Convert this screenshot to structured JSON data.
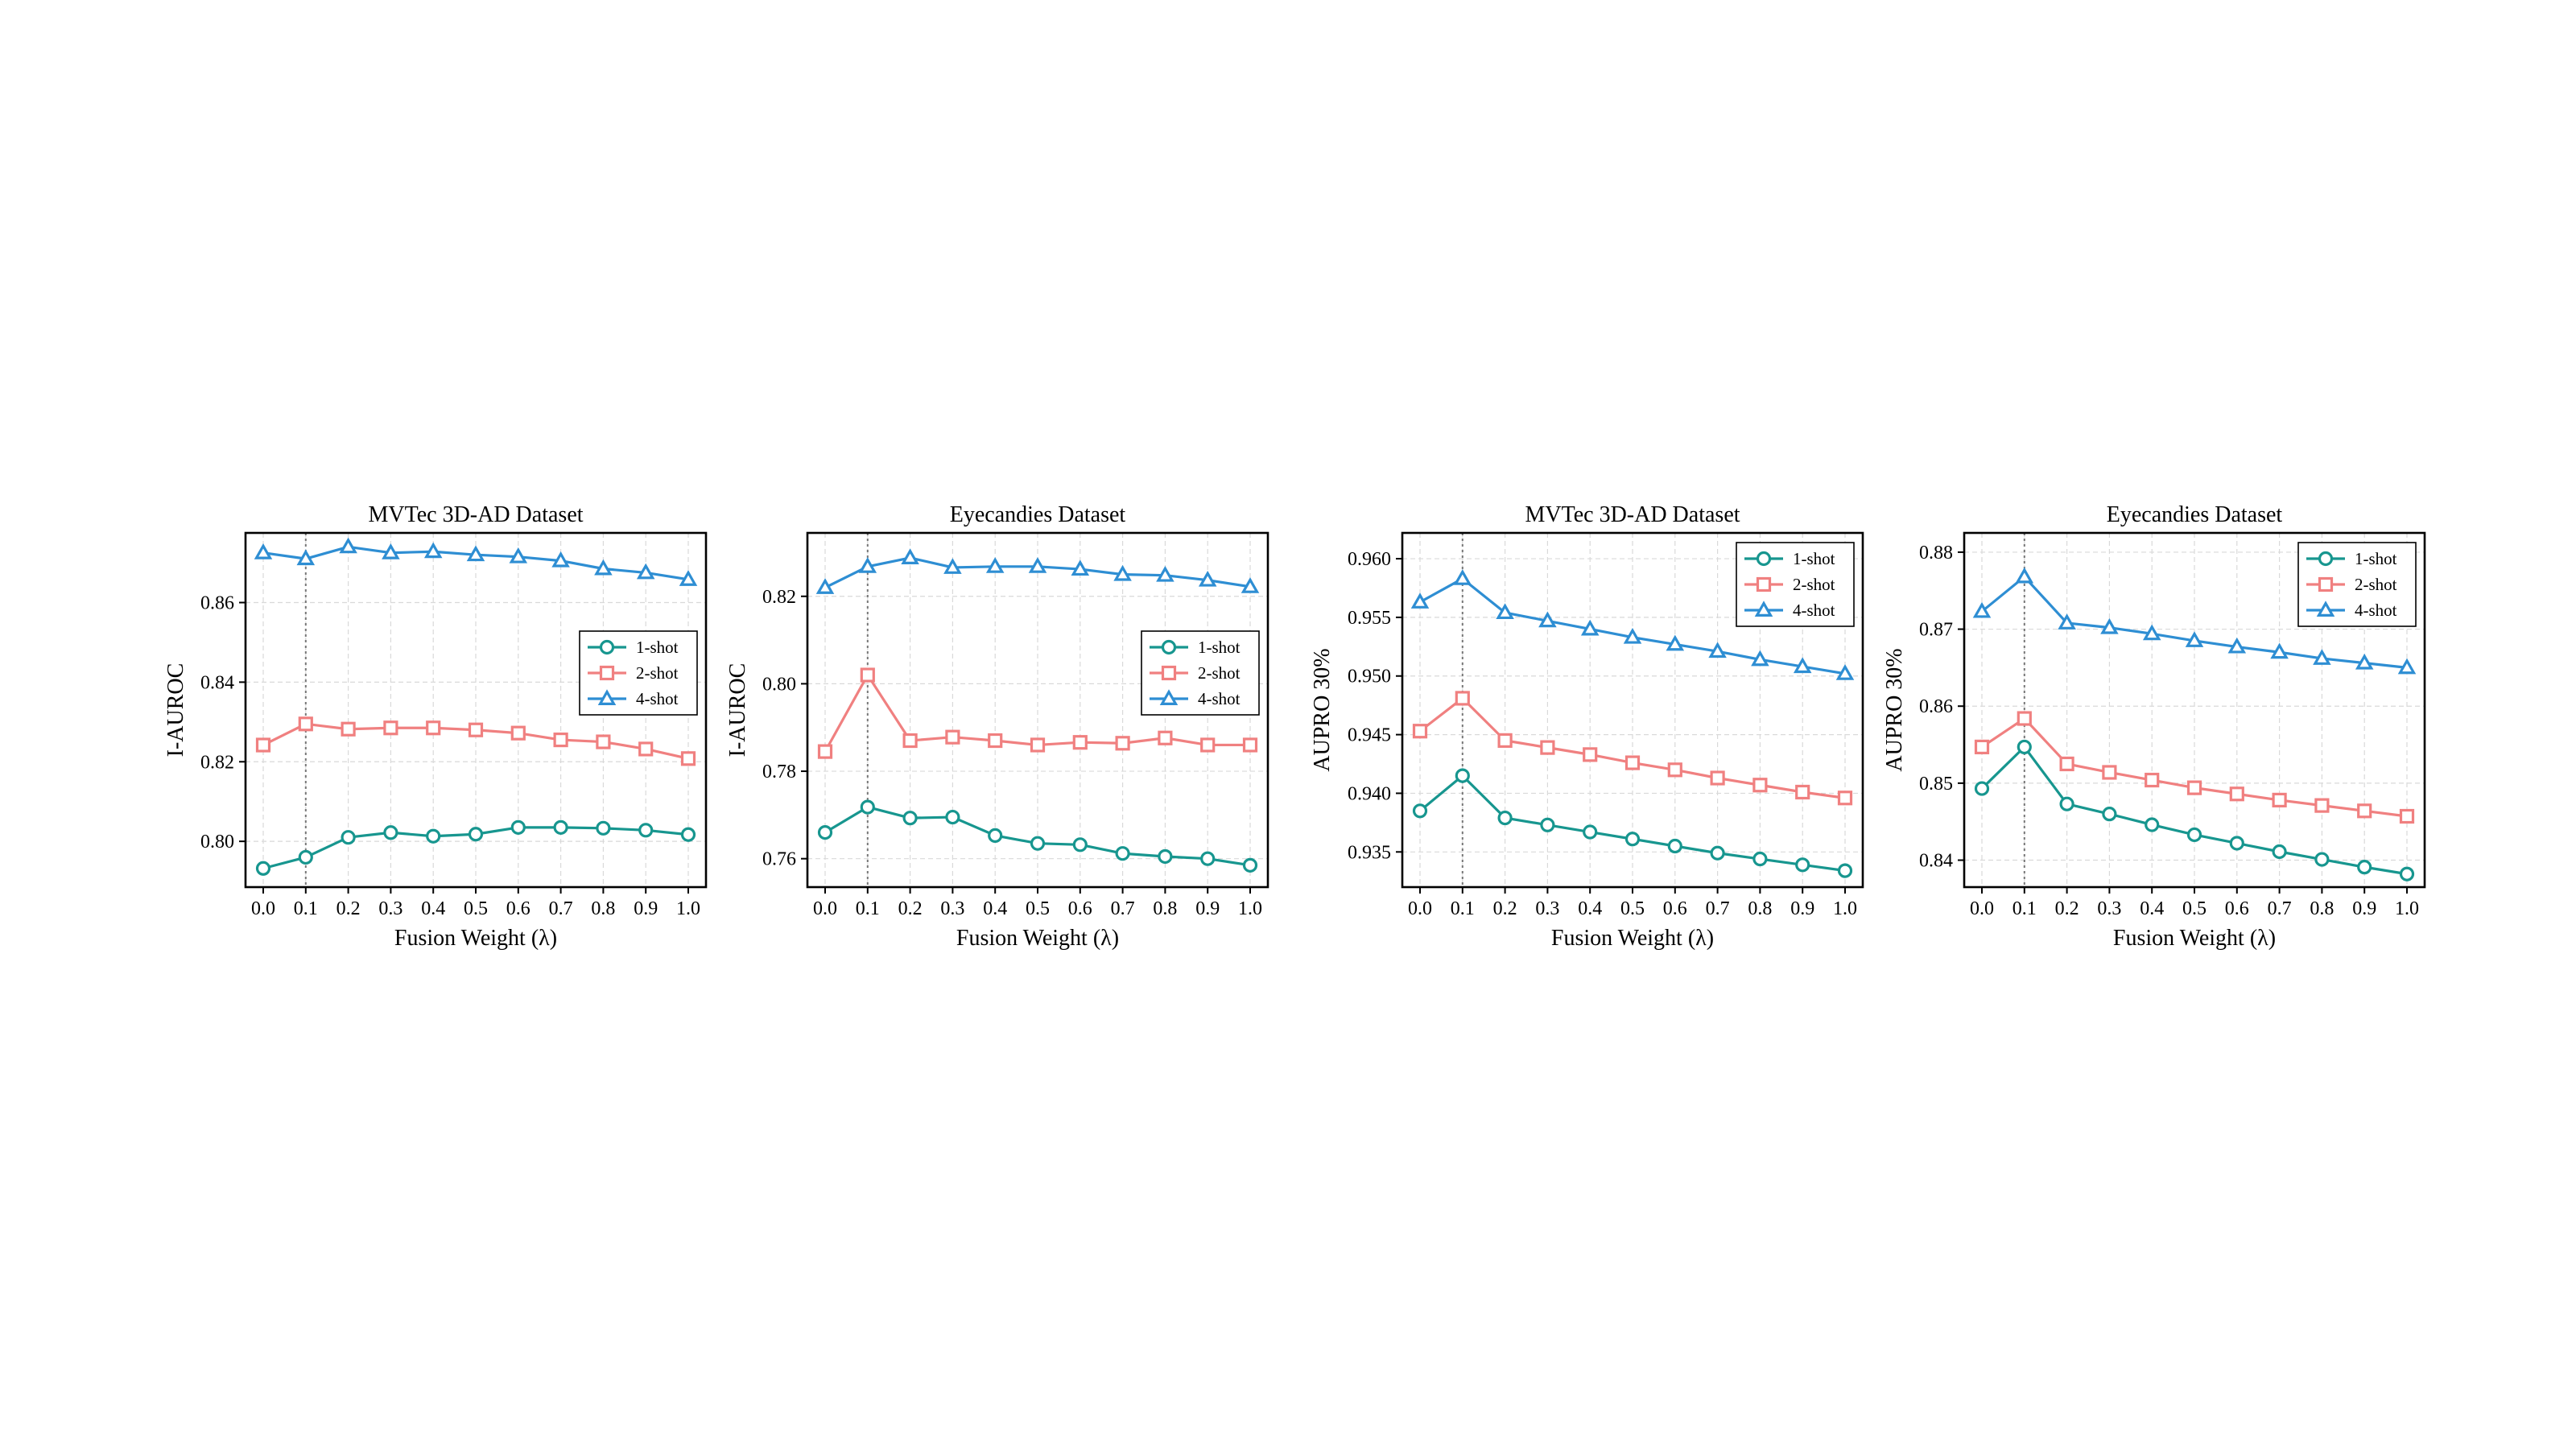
{
  "x_ticks": [
    "0.0",
    "0.1",
    "0.2",
    "0.3",
    "0.4",
    "0.5",
    "0.6",
    "0.7",
    "0.8",
    "0.9",
    "1.0"
  ],
  "colors": {
    "1-shot": "#17968f",
    "2-shot": "#f08080",
    "4-shot": "#2e8ed3"
  },
  "chart_data": [
    {
      "type": "line",
      "title": "MVTec 3D-AD Dataset",
      "xlabel": "Fusion Weight (λ)",
      "ylabel": "I-AUROC",
      "x": [
        0.0,
        0.1,
        0.2,
        0.3,
        0.4,
        0.5,
        0.6,
        0.7,
        0.8,
        0.9,
        1.0
      ],
      "ylim": [
        0.7885,
        0.8775
      ],
      "yticks": [
        "0.80",
        "0.82",
        "0.84",
        "0.86"
      ],
      "ytick_values": [
        0.8,
        0.82,
        0.84,
        0.86
      ],
      "vline_x": 0.1,
      "legend": "center-right",
      "grid": true,
      "series": [
        {
          "name": "1-shot",
          "marker": "circle",
          "values": [
            0.7932,
            0.796,
            0.801,
            0.8022,
            0.8013,
            0.8018,
            0.8035,
            0.8035,
            0.8033,
            0.8028,
            0.8017
          ]
        },
        {
          "name": "2-shot",
          "marker": "square",
          "values": [
            0.8242,
            0.8295,
            0.8282,
            0.8285,
            0.8285,
            0.828,
            0.8272,
            0.8255,
            0.825,
            0.8232,
            0.8208
          ]
        },
        {
          "name": "4-shot",
          "marker": "triangle",
          "values": [
            0.8725,
            0.871,
            0.874,
            0.8725,
            0.8728,
            0.872,
            0.8715,
            0.8705,
            0.8685,
            0.8675,
            0.8658
          ]
        }
      ]
    },
    {
      "type": "line",
      "title": "Eyecandies Dataset",
      "xlabel": "Fusion Weight (λ)",
      "ylabel": "I-AUROC",
      "x": [
        0.0,
        0.1,
        0.2,
        0.3,
        0.4,
        0.5,
        0.6,
        0.7,
        0.8,
        0.9,
        1.0
      ],
      "ylim": [
        0.7535,
        0.8345
      ],
      "yticks": [
        "0.76",
        "0.78",
        "0.80",
        "0.82"
      ],
      "ytick_values": [
        0.76,
        0.78,
        0.8,
        0.82
      ],
      "vline_x": 0.1,
      "legend": "center-right",
      "grid": true,
      "series": [
        {
          "name": "1-shot",
          "marker": "circle",
          "values": [
            0.766,
            0.7718,
            0.7693,
            0.7695,
            0.7653,
            0.7635,
            0.7632,
            0.7612,
            0.7605,
            0.76,
            0.7585
          ]
        },
        {
          "name": "2-shot",
          "marker": "square",
          "values": [
            0.7845,
            0.802,
            0.787,
            0.7878,
            0.787,
            0.786,
            0.7866,
            0.7864,
            0.7876,
            0.786,
            0.786
          ]
        },
        {
          "name": "4-shot",
          "marker": "triangle",
          "values": [
            0.822,
            0.8268,
            0.8288,
            0.8266,
            0.8268,
            0.8268,
            0.8262,
            0.825,
            0.8248,
            0.8237,
            0.8222
          ]
        }
      ]
    },
    {
      "type": "line",
      "title": "MVTec 3D-AD Dataset",
      "xlabel": "Fusion Weight (λ)",
      "ylabel": "AUPRO 30%",
      "x": [
        0.0,
        0.1,
        0.2,
        0.3,
        0.4,
        0.5,
        0.6,
        0.7,
        0.8,
        0.9,
        1.0
      ],
      "ylim": [
        0.932,
        0.9622
      ],
      "yticks": [
        "0.935",
        "0.940",
        "0.945",
        "0.950",
        "0.955",
        "0.960"
      ],
      "ytick_values": [
        0.935,
        0.94,
        0.945,
        0.95,
        0.955,
        0.96
      ],
      "vline_x": 0.1,
      "legend": "top-right",
      "grid": true,
      "series": [
        {
          "name": "1-shot",
          "marker": "circle",
          "values": [
            0.9385,
            0.9415,
            0.9379,
            0.9373,
            0.9367,
            0.9361,
            0.9355,
            0.9349,
            0.9344,
            0.9339,
            0.9334
          ]
        },
        {
          "name": "2-shot",
          "marker": "square",
          "values": [
            0.9453,
            0.9481,
            0.9445,
            0.9439,
            0.9433,
            0.9426,
            0.942,
            0.9413,
            0.9407,
            0.9401,
            0.9396
          ]
        },
        {
          "name": "4-shot",
          "marker": "triangle",
          "values": [
            0.9563,
            0.9583,
            0.9554,
            0.9547,
            0.954,
            0.9533,
            0.9527,
            0.9521,
            0.9514,
            0.9508,
            0.9502
          ]
        }
      ]
    },
    {
      "type": "line",
      "title": "Eyecandies Dataset",
      "xlabel": "Fusion Weight (λ)",
      "ylabel": "AUPRO 30%",
      "x": [
        0.0,
        0.1,
        0.2,
        0.3,
        0.4,
        0.5,
        0.6,
        0.7,
        0.8,
        0.9,
        1.0
      ],
      "ylim": [
        0.8365,
        0.8825
      ],
      "yticks": [
        "0.84",
        "0.85",
        "0.86",
        "0.87",
        "0.88"
      ],
      "ytick_values": [
        0.84,
        0.85,
        0.86,
        0.87,
        0.88
      ],
      "vline_x": 0.1,
      "legend": "top-right",
      "grid": true,
      "series": [
        {
          "name": "1-shot",
          "marker": "circle",
          "values": [
            0.8493,
            0.8547,
            0.8473,
            0.846,
            0.8446,
            0.8433,
            0.8422,
            0.8411,
            0.8401,
            0.8391,
            0.8382
          ]
        },
        {
          "name": "2-shot",
          "marker": "square",
          "values": [
            0.8547,
            0.8584,
            0.8525,
            0.8514,
            0.8504,
            0.8494,
            0.8486,
            0.8478,
            0.8471,
            0.8464,
            0.8457
          ]
        },
        {
          "name": "4-shot",
          "marker": "triangle",
          "values": [
            0.8723,
            0.8768,
            0.8708,
            0.8702,
            0.8694,
            0.8685,
            0.8677,
            0.867,
            0.8662,
            0.8656,
            0.865
          ]
        }
      ]
    }
  ]
}
